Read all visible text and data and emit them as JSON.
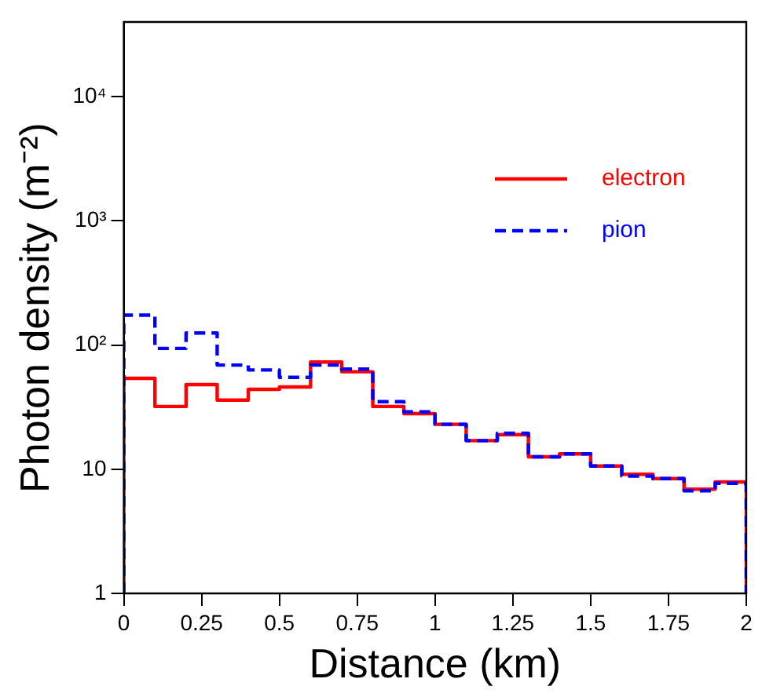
{
  "chart_data": {
    "type": "histogram",
    "xlabel": "Distance (km)",
    "ylabel": "Photon density (m⁻²)",
    "bins": [
      0,
      0.1,
      0.2,
      0.3,
      0.4,
      0.5,
      0.6,
      0.7,
      0.8,
      0.9,
      1.0,
      1.1,
      1.2,
      1.3,
      1.4,
      1.5,
      1.6,
      1.7,
      1.8,
      1.9,
      2.0
    ],
    "series": [
      {
        "name": "electron",
        "color": "#ff0000",
        "line_style": "solid",
        "values": [
          54,
          32,
          48,
          36,
          44,
          46,
          73,
          61,
          32,
          28,
          23,
          17,
          19,
          12.6,
          13.3,
          10.6,
          9.1,
          8.4,
          6.9,
          7.9
        ]
      },
      {
        "name": "pion",
        "color": "#0000ff",
        "line_style": "dashed",
        "values": [
          174,
          94,
          125,
          69,
          63,
          55,
          69,
          64,
          35,
          29,
          23,
          17,
          19.5,
          12.6,
          13.3,
          10.6,
          8.8,
          8.4,
          6.7,
          7.7
        ]
      }
    ],
    "log": "y",
    "xlim": [
      0,
      2
    ],
    "xticks": [
      0,
      0.25,
      0.5,
      0.75,
      1,
      1.25,
      1.5,
      1.75,
      2
    ],
    "ylim": [
      1,
      40000
    ],
    "yticks": [
      1,
      10,
      {
        "value": 100,
        "label": "10²"
      },
      {
        "value": 1000,
        "label": "10³"
      },
      {
        "value": 10000,
        "label": "10⁴"
      }
    ],
    "grid": false,
    "legend": "top right"
  }
}
